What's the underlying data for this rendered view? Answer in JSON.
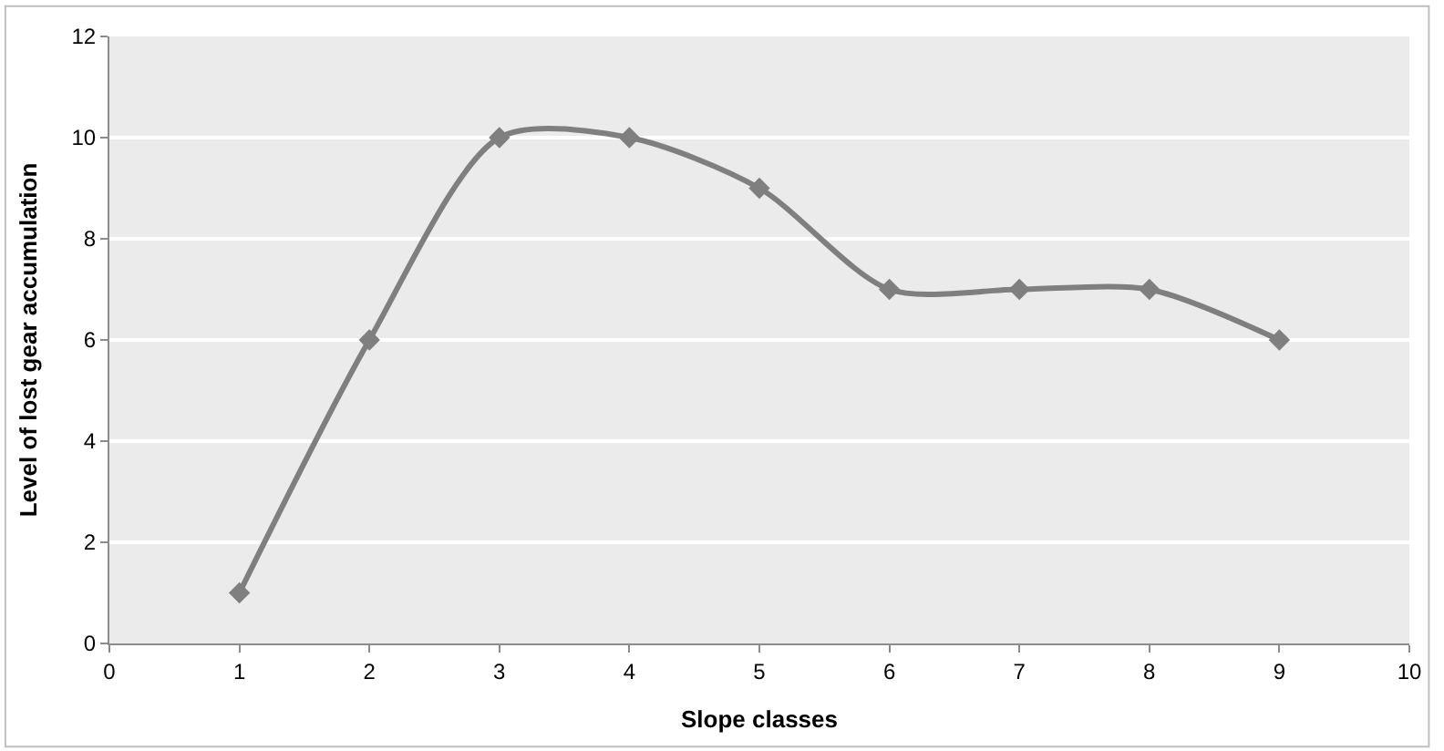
{
  "chart_data": {
    "type": "line",
    "xlabel": "Slope classes",
    "ylabel": "Level of lost gear accumulation",
    "x": [
      1,
      2,
      3,
      4,
      5,
      6,
      7,
      8,
      9
    ],
    "series": [
      {
        "color": "#7f7f7f",
        "values": [
          1,
          6,
          10,
          10,
          9,
          7,
          7,
          7,
          6
        ]
      }
    ],
    "xlim": [
      0,
      10
    ],
    "xticks": [
      0,
      1,
      2,
      3,
      4,
      5,
      6,
      7,
      8,
      9,
      10
    ],
    "ylim": [
      0,
      12
    ],
    "yticks": [
      0,
      2,
      4,
      6,
      8,
      10,
      12
    ],
    "grid": "y",
    "legend": false,
    "marker": "diamond",
    "line_style": "solid"
  }
}
